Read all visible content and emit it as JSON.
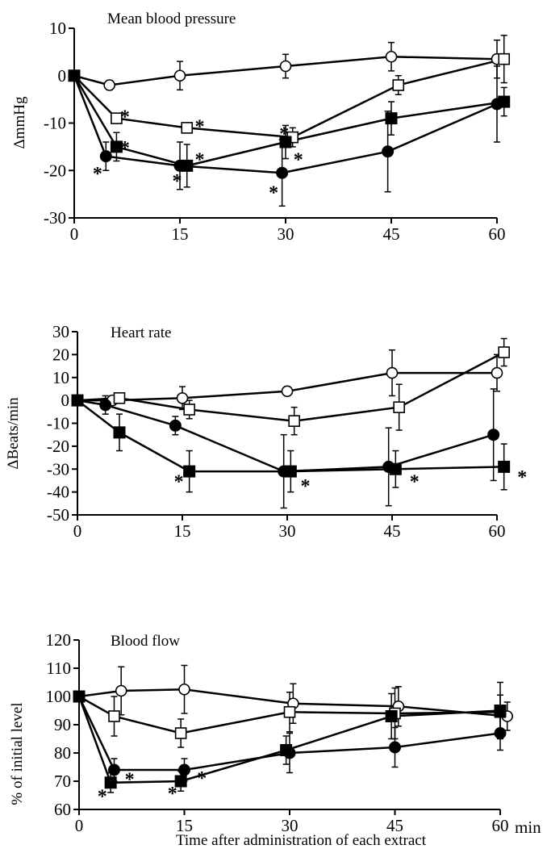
{
  "figure": {
    "xlabel": "Time after administration of each extract",
    "x_unit": "min"
  },
  "chart_data": [
    {
      "type": "line",
      "title": "Mean blood pressure",
      "xlabel": "",
      "ylabel": "ΔmmHg",
      "xlim": [
        0,
        60
      ],
      "ylim": [
        -30,
        10
      ],
      "x_ticks": [
        0,
        15,
        30,
        45,
        60
      ],
      "y_ticks": [
        -30,
        -20,
        -10,
        0,
        10
      ],
      "grid": false,
      "legend": "none",
      "series": [
        {
          "marker": "open-circle",
          "points": [
            [
              0,
              0,
              0
            ],
            [
              5,
              -2,
              1
            ],
            [
              15,
              0,
              3
            ],
            [
              30,
              2,
              2.5
            ],
            [
              45,
              4,
              3
            ],
            [
              60,
              3.5,
              4
            ]
          ]
        },
        {
          "marker": "open-square",
          "points": [
            [
              0,
              0,
              0
            ],
            [
              6,
              -9,
              0.8
            ],
            [
              16,
              -11,
              1
            ],
            [
              31,
              -13,
              2
            ],
            [
              46,
              -2,
              2
            ],
            [
              61,
              3.5,
              5
            ]
          ]
        },
        {
          "marker": "filled-square",
          "points": [
            [
              0,
              0,
              0
            ],
            [
              6,
              -15,
              3
            ],
            [
              16,
              -19,
              4.5
            ],
            [
              30,
              -14,
              3.5
            ],
            [
              45,
              -9,
              3.5
            ],
            [
              61,
              -5.5,
              3
            ]
          ]
        },
        {
          "marker": "filled-circle",
          "points": [
            [
              0,
              0,
              0
            ],
            [
              4.5,
              -17,
              3
            ],
            [
              15,
              -19,
              5
            ],
            [
              29.5,
              -20.5,
              7
            ],
            [
              44.5,
              -16,
              8.5
            ],
            [
              60,
              -6,
              8
            ]
          ]
        }
      ],
      "significance": [
        {
          "x": 7.2,
          "y": -8.5
        },
        {
          "x": 17.8,
          "y": -10.5
        },
        {
          "x": 29.8,
          "y": -12
        },
        {
          "x": 7.2,
          "y": -15
        },
        {
          "x": 17.8,
          "y": -17.5
        },
        {
          "x": 31.8,
          "y": -17.5
        },
        {
          "x": 3.3,
          "y": -20.5
        },
        {
          "x": 14.6,
          "y": -22
        },
        {
          "x": 28.3,
          "y": -24.5
        }
      ]
    },
    {
      "type": "line",
      "title": "Heart rate",
      "xlabel": "",
      "ylabel": "ΔBeats/min",
      "xlim": [
        0,
        60
      ],
      "ylim": [
        -50,
        30
      ],
      "x_ticks": [
        0,
        15,
        30,
        45,
        60
      ],
      "y_ticks": [
        -50,
        -40,
        -30,
        -20,
        -10,
        0,
        10,
        20,
        30
      ],
      "grid": false,
      "legend": "none",
      "series": [
        {
          "marker": "open-circle",
          "points": [
            [
              0,
              0,
              0
            ],
            [
              5,
              0,
              2
            ],
            [
              15,
              1,
              5
            ],
            [
              30,
              4,
              2
            ],
            [
              45,
              12,
              10
            ],
            [
              60,
              12,
              8
            ]
          ]
        },
        {
          "marker": "open-square",
          "points": [
            [
              0,
              0,
              0
            ],
            [
              6,
              1,
              2
            ],
            [
              16,
              -4,
              4
            ],
            [
              31,
              -9,
              6
            ],
            [
              46,
              -3,
              10
            ],
            [
              61,
              21,
              6
            ]
          ]
        },
        {
          "marker": "filled-circle",
          "points": [
            [
              0,
              0,
              0
            ],
            [
              4,
              -2,
              4
            ],
            [
              14,
              -11,
              4
            ],
            [
              29.5,
              -31,
              16
            ],
            [
              44.5,
              -29,
              17
            ],
            [
              59.5,
              -15,
              20
            ]
          ]
        },
        {
          "marker": "filled-square",
          "points": [
            [
              0,
              0,
              0
            ],
            [
              6,
              -14,
              8
            ],
            [
              16,
              -31,
              9
            ],
            [
              30.5,
              -31,
              9
            ],
            [
              45.5,
              -30,
              8
            ],
            [
              61,
              -29,
              10
            ]
          ]
        }
      ],
      "significance": [
        {
          "x": 14.5,
          "y": -35
        },
        {
          "x": 32.6,
          "y": -37
        },
        {
          "x": 48.2,
          "y": -35
        },
        {
          "x": 63.6,
          "y": -33
        }
      ]
    },
    {
      "type": "line",
      "title": "Blood flow",
      "xlabel": "",
      "ylabel": "% of initial level",
      "xlim": [
        0,
        60
      ],
      "ylim": [
        60,
        120
      ],
      "x_ticks": [
        0,
        15,
        30,
        45,
        60
      ],
      "x_tick_labels": [
        "0",
        "15",
        "30",
        "45",
        "60"
      ],
      "y_ticks": [
        60,
        70,
        80,
        90,
        100,
        110,
        120
      ],
      "grid": false,
      "legend": "none",
      "series": [
        {
          "marker": "open-circle",
          "points": [
            [
              0,
              100,
              0
            ],
            [
              6,
              102,
              8.5
            ],
            [
              15,
              102.5,
              8.5
            ],
            [
              30.5,
              97.5,
              7
            ],
            [
              45.5,
              96.5,
              7
            ],
            [
              61,
              93,
              5
            ]
          ]
        },
        {
          "marker": "open-square",
          "points": [
            [
              0,
              100,
              0
            ],
            [
              5,
              93,
              7
            ],
            [
              14.5,
              87,
              5
            ],
            [
              30,
              94.5,
              7
            ],
            [
              45,
              94,
              9
            ],
            [
              60,
              94.5,
              6
            ]
          ]
        },
        {
          "marker": "filled-circle",
          "points": [
            [
              0,
              100,
              0
            ],
            [
              5,
              74,
              4
            ],
            [
              15,
              74,
              4
            ],
            [
              30,
              80,
              7
            ],
            [
              45,
              82,
              7
            ],
            [
              60,
              87,
              6
            ]
          ]
        },
        {
          "marker": "filled-square",
          "points": [
            [
              0,
              100,
              0
            ],
            [
              4.5,
              69.5,
              3.5
            ],
            [
              14.5,
              70,
              3.5
            ],
            [
              29.5,
              81,
              5
            ],
            [
              44.5,
              93,
              8
            ],
            [
              60,
              95,
              10
            ]
          ]
        }
      ],
      "significance": [
        {
          "x": 7.2,
          "y": 71
        },
        {
          "x": 17.5,
          "y": 71.5
        },
        {
          "x": 3.3,
          "y": 65
        },
        {
          "x": 13.3,
          "y": 66
        }
      ]
    }
  ]
}
